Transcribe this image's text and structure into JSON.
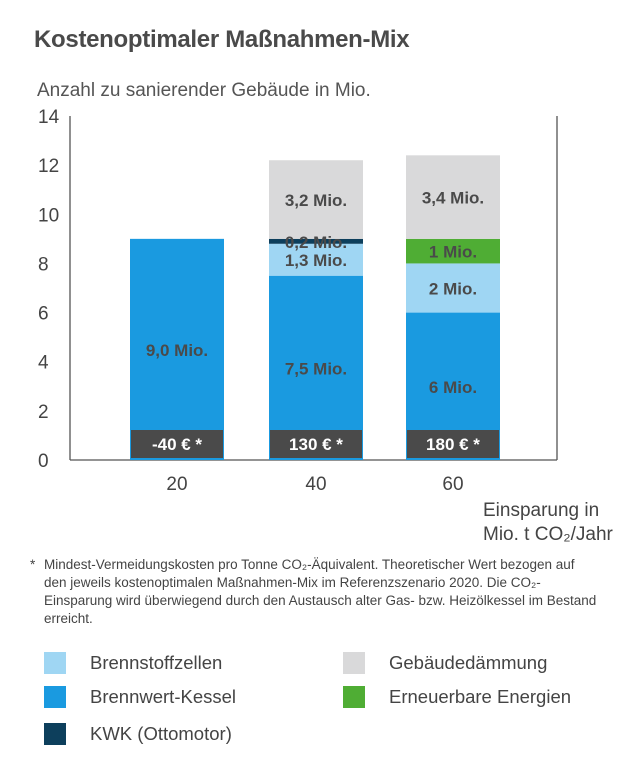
{
  "title": "Kostenoptimaler Maßnahmen-Mix",
  "subtitle": "Anzahl zu sanierender Gebäude in Mio.",
  "chart_data": {
    "type": "bar",
    "stacked": true,
    "categories": [
      "20",
      "40",
      "60"
    ],
    "x_axis_title_line1": "Einsparung in",
    "x_axis_title_line2": "Mio. t CO₂/Jahr",
    "ylim": [
      0,
      14
    ],
    "yticks": [
      "0",
      "2",
      "4",
      "6",
      "8",
      "10",
      "12",
      "14"
    ],
    "grid": false,
    "series": [
      {
        "name": "Brennwert-Kessel",
        "color": "#1a9ae0",
        "values": [
          9.0,
          7.5,
          6.0
        ],
        "labels": [
          "9,0 Mio.",
          "7,5 Mio.",
          "6 Mio."
        ]
      },
      {
        "name": "Brennstoffzellen",
        "color": "#9fd6f3",
        "values": [
          0,
          1.3,
          2.0
        ],
        "labels": [
          "",
          "1,3 Mio.",
          "2 Mio."
        ]
      },
      {
        "name": "KWK (Ottomotor)",
        "color": "#0d3f5c",
        "values": [
          0,
          0.2,
          0
        ],
        "labels": [
          "",
          "0,2 Mio.",
          ""
        ]
      },
      {
        "name": "Erneuerbare Energien",
        "color": "#4fad34",
        "values": [
          0,
          0,
          1.0
        ],
        "labels": [
          "",
          "",
          "1 Mio."
        ]
      },
      {
        "name": "Gebäudedämmung",
        "color": "#d9d9da",
        "values": [
          0,
          3.2,
          3.4
        ],
        "labels": [
          "",
          "3,2 Mio.",
          "3,4 Mio."
        ]
      }
    ],
    "cost_badges": [
      "-40 € *",
      "130 € *",
      "180 € *"
    ],
    "badge_color": "#4a4a4a"
  },
  "footnote_star": "*",
  "footnote": "Mindest-Vermeidungskosten pro Tonne CO₂-Äquivalent. Theoretischer Wert bezogen auf den jeweils kostenoptimalen Maßnahmen-Mix im Referenzszenario 2020. Die CO₂-Einsparung wird überwiegend durch den Austausch alter Gas- bzw. Heizölkessel im Bestand erreicht.",
  "legend": [
    {
      "label": "Brennstoffzellen",
      "color": "#9fd6f3"
    },
    {
      "label": "Gebäudedämmung",
      "color": "#d9d9da"
    },
    {
      "label": "Brennwert-Kessel",
      "color": "#1a9ae0"
    },
    {
      "label": "Erneuerbare Energien",
      "color": "#4fad34"
    },
    {
      "label": "KWK (Ottomotor)",
      "color": "#0d3f5c"
    }
  ]
}
